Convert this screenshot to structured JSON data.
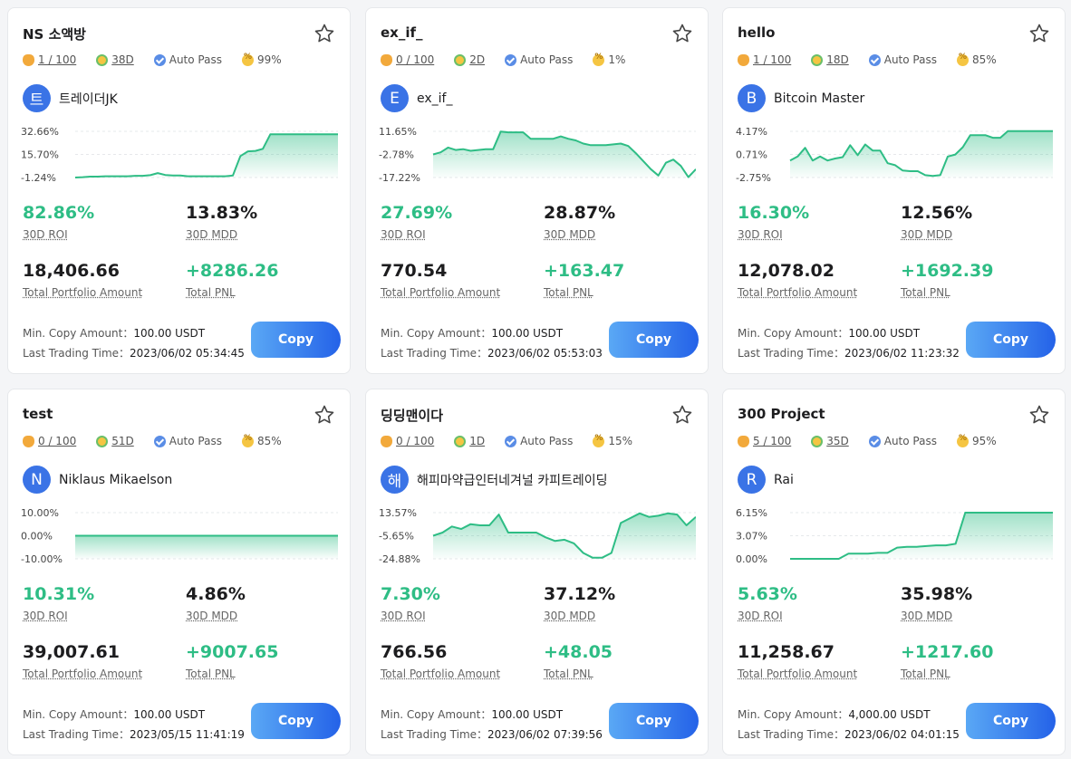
{
  "labels": {
    "roi": "30D ROI",
    "mdd": "30D MDD",
    "aum": "Total Portfolio Amount",
    "pnl": "Total PNL",
    "min_copy": "Min. Copy Amount：",
    "last_trade": "Last Trading Time：",
    "auto_pass": "Auto Pass",
    "copy": "Copy"
  },
  "colors": {
    "green": "#2ebd85",
    "button_start": "#5aa8f5",
    "button_end": "#2462e8",
    "avatar": "#3a73e6"
  },
  "cards": [
    {
      "title": "NS 소액방",
      "copiers": "1 / 100",
      "days": "38D",
      "win_rate": "99%",
      "avatar_letter": "트",
      "trader": "트레이더JK",
      "roi": "82.86%",
      "mdd": "13.83%",
      "aum": "18,406.66",
      "pnl": "+8286.26",
      "min_copy": "100.00 USDT",
      "last_trade": "2023/06/02 05:34:45",
      "chart_data": {
        "type": "area",
        "y_ticks": [
          "32.66%",
          "15.70%",
          "-1.24%"
        ],
        "ylim": [
          -1.24,
          32.66
        ],
        "values": [
          -1.24,
          -1.0,
          -0.6,
          -0.6,
          -0.3,
          -0.3,
          -0.3,
          -0.3,
          0,
          0,
          0.5,
          2.0,
          0.6,
          0.2,
          0.2,
          -0.3,
          -0.3,
          -0.3,
          -0.3,
          -0.3,
          -0.3,
          0.2,
          14.5,
          18.0,
          18.3,
          19.8,
          30.5,
          30.5,
          30.5,
          30.5,
          30.5,
          30.5,
          30.5,
          30.5,
          30.5,
          30.5
        ]
      }
    },
    {
      "title": "ex_if_",
      "copiers": "0 / 100",
      "days": "2D",
      "win_rate": "1%",
      "avatar_letter": "E",
      "trader": "ex_if_",
      "roi": "27.69%",
      "mdd": "28.87%",
      "aum": "770.54",
      "pnl": "+163.47",
      "min_copy": "100.00 USDT",
      "last_trade": "2023/06/02 05:53:03",
      "chart_data": {
        "type": "area",
        "y_ticks": [
          "11.65%",
          "-2.78%",
          "-17.22%"
        ],
        "ylim": [
          -17.22,
          11.65
        ],
        "values": [
          -2.78,
          -1.5,
          1.5,
          0.0,
          0.5,
          -0.5,
          0.0,
          0.5,
          0.5,
          11.5,
          11.0,
          11.0,
          11.0,
          7.0,
          7.0,
          7.0,
          7.0,
          8.5,
          7.0,
          6.0,
          4.0,
          3.0,
          3.0,
          3.0,
          3.5,
          4.0,
          2.5,
          -2.0,
          -7.0,
          -12.0,
          -16.0,
          -8.0,
          -6.0,
          -10.0,
          -17.0,
          -12.0
        ]
      }
    },
    {
      "title": "hello",
      "copiers": "1 / 100",
      "days": "18D",
      "win_rate": "85%",
      "avatar_letter": "B",
      "trader": "Bitcoin Master",
      "roi": "16.30%",
      "mdd": "12.56%",
      "aum": "12,078.02",
      "pnl": "+1692.39",
      "min_copy": "100.00 USDT",
      "last_trade": "2023/06/02 11:23:32",
      "chart_data": {
        "type": "area",
        "y_ticks": [
          "4.17%",
          "0.71%",
          "-2.75%"
        ],
        "ylim": [
          -2.75,
          4.17
        ],
        "values": [
          -0.2,
          0.4,
          1.7,
          -0.2,
          0.4,
          -0.2,
          0.1,
          0.3,
          2.1,
          0.6,
          2.2,
          1.3,
          1.3,
          -0.6,
          -0.9,
          -1.7,
          -1.8,
          -1.8,
          -2.4,
          -2.5,
          -2.4,
          0.4,
          0.7,
          1.8,
          3.6,
          3.6,
          3.6,
          3.2,
          3.2,
          4.2,
          4.2,
          4.2,
          4.2,
          4.2,
          4.2,
          4.2
        ]
      }
    },
    {
      "title": "test",
      "copiers": "0 / 100",
      "days": "51D",
      "win_rate": "85%",
      "avatar_letter": "N",
      "trader": "Niklaus Mikaelson",
      "roi": "10.31%",
      "mdd": "4.86%",
      "aum": "39,007.61",
      "pnl": "+9007.65",
      "min_copy": "100.00 USDT",
      "last_trade": "2023/05/15 11:41:19",
      "chart_data": {
        "type": "area",
        "y_ticks": [
          "10.00%",
          "0.00%",
          "-10.00%"
        ],
        "ylim": [
          -10,
          10
        ],
        "values": [
          0.0,
          0.0,
          0.0,
          0.0,
          0.0,
          0.0,
          0.0,
          0.0,
          0.0,
          0.0,
          0.0,
          0.0
        ]
      }
    },
    {
      "title": "딩딩맨이다",
      "copiers": "0 / 100",
      "days": "1D",
      "win_rate": "15%",
      "avatar_letter": "해",
      "trader": "해피마약급인터네겨널 카피트레이딩",
      "roi": "7.30%",
      "mdd": "37.12%",
      "aum": "766.56",
      "pnl": "+48.05",
      "min_copy": "100.00 USDT",
      "last_trade": "2023/06/02 07:39:56",
      "chart_data": {
        "type": "area",
        "y_ticks": [
          "13.57%",
          "-5.65%",
          "-24.88%"
        ],
        "ylim": [
          -24.88,
          13.57
        ],
        "values": [
          -5.65,
          -3.0,
          2.0,
          0.0,
          4.0,
          3.0,
          3.0,
          12.0,
          -3.0,
          -3.0,
          -3.0,
          -3.0,
          -7.0,
          -10.0,
          -9.0,
          -12.0,
          -20.0,
          -24.0,
          -24.0,
          -20.0,
          5.0,
          9.0,
          13.0,
          10.0,
          11.0,
          13.0,
          12.0,
          3.0,
          10.0
        ]
      }
    },
    {
      "title": "300 Project",
      "copiers": "5 / 100",
      "days": "35D",
      "win_rate": "95%",
      "avatar_letter": "R",
      "trader": "Rai",
      "roi": "5.63%",
      "mdd": "35.98%",
      "aum": "11,258.67",
      "pnl": "+1217.60",
      "min_copy": "4,000.00 USDT",
      "last_trade": "2023/06/02 04:01:15",
      "chart_data": {
        "type": "area",
        "y_ticks": [
          "6.15%",
          "3.07%",
          "0.00%"
        ],
        "ylim": [
          0,
          6.15
        ],
        "values": [
          0.0,
          0.0,
          0.0,
          0.0,
          0.0,
          0.0,
          0.7,
          0.7,
          0.7,
          0.8,
          0.8,
          1.5,
          1.6,
          1.6,
          1.7,
          1.8,
          1.8,
          2.0,
          6.15,
          6.15,
          6.15,
          6.15,
          6.15,
          6.15,
          6.15,
          6.15,
          6.15,
          6.15
        ]
      }
    }
  ]
}
